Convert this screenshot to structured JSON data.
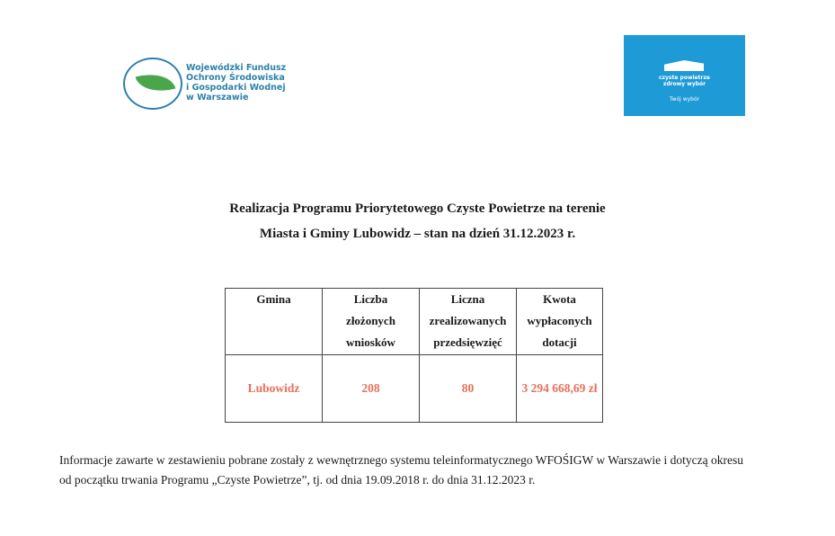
{
  "logos": {
    "wfosigw": "Wojewódzki Fundusz Ochrony Środowiska i Gospodarki Wodnej w Warszawie",
    "wfosigw_lines": [
      "Wojewódzki Fundusz",
      "Ochrony Środowiska",
      "i Gospodarki Wodnej",
      "w Warszawie"
    ],
    "czyste_powietrze_lines": [
      "czyste powietrze",
      "zdrowy wybór"
    ],
    "czyste_powietrze_tagline": "Twój wybór",
    "brand_color": "#1e9ad6"
  },
  "title": {
    "line1": "Realizacja Programu Priorytetowego Czyste Powietrze na terenie",
    "line2": "Miasta i Gminy Lubowidz – stan na dzień 31.12.2023 r."
  },
  "table": {
    "headers": [
      [
        "Gmina"
      ],
      [
        "Liczba",
        "złożonych",
        "wniosków"
      ],
      [
        "Liczna",
        "zrealizowanych",
        "przedsięwzięć"
      ],
      [
        "Kwota",
        "wypłaconych",
        "dotacji"
      ]
    ],
    "rows": [
      [
        "Lubowidz",
        "208",
        "80",
        "3 294 668,69 zł"
      ]
    ],
    "value_color": "#e8705a"
  },
  "footnote": {
    "line1": "Informacje zawarte w zestawieniu pobrane zostały z wewnętrznego systemu teleinformatycznego WFOŚIGW w Warszawie i dotyczą okresu",
    "line2": "od początku trwania Programu „Czyste Powietrze”, tj. od dnia 19.09.2018 r. do dnia 31.12.2023 r."
  }
}
